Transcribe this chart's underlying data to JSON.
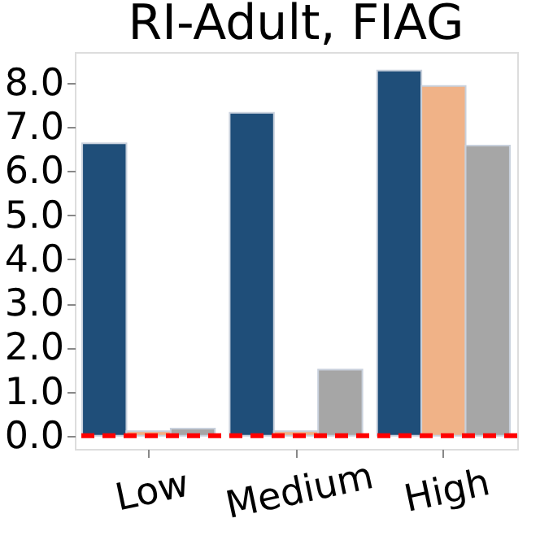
{
  "chart_data": {
    "type": "bar",
    "title": "RI-Adult, FIAG",
    "categories": [
      "Low",
      "Medium",
      "High"
    ],
    "series": [
      {
        "color": "#1f4e79",
        "values": [
          6.63,
          7.32,
          8.28
        ]
      },
      {
        "color": "#f0b287",
        "values": [
          0.1,
          0.1,
          7.93
        ]
      },
      {
        "color": "#a6a6a6",
        "values": [
          0.16,
          1.5,
          6.58
        ]
      }
    ],
    "ylim": [
      -0.3,
      8.7
    ],
    "yticks": [
      {
        "value": 0,
        "label": "0.0"
      },
      {
        "value": 1,
        "label": "1.0"
      },
      {
        "value": 2,
        "label": "2.0"
      },
      {
        "value": 3,
        "label": "3.0"
      },
      {
        "value": 4,
        "label": "4.0"
      },
      {
        "value": 5,
        "label": "5.0"
      },
      {
        "value": 6,
        "label": "6.0"
      },
      {
        "value": 7,
        "label": "7.0"
      },
      {
        "value": 8,
        "label": "8.0"
      }
    ],
    "ref_lines": [
      {
        "axis": "y",
        "value": 0,
        "label": null,
        "color": "#ff0000",
        "line_style": "dashed"
      }
    ],
    "grid": false
  }
}
